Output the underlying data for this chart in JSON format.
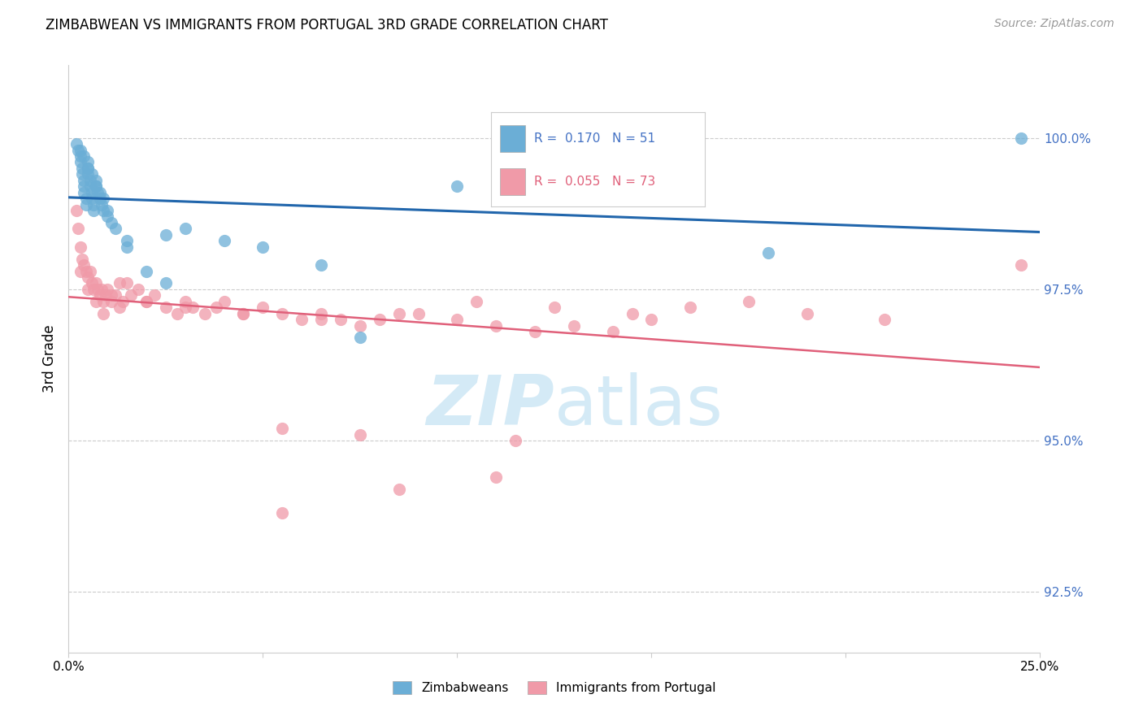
{
  "title": "ZIMBABWEAN VS IMMIGRANTS FROM PORTUGAL 3RD GRADE CORRELATION CHART",
  "source": "Source: ZipAtlas.com",
  "ylabel": "3rd Grade",
  "ytick_labels": [
    "92.5%",
    "95.0%",
    "97.5%",
    "100.0%"
  ],
  "ytick_values": [
    92.5,
    95.0,
    97.5,
    100.0
  ],
  "xlim": [
    0.0,
    25.0
  ],
  "ylim": [
    91.5,
    101.2
  ],
  "blue_color": "#6baed6",
  "pink_color": "#f09aa8",
  "blue_line_color": "#2166ac",
  "pink_line_color": "#e0607a",
  "blue_text_color": "#4472c4",
  "pink_text_color": "#e0607a",
  "watermark_color": "#d0e8f5",
  "background_color": "#ffffff",
  "grid_color": "#cccccc",
  "label_blue": "Zimbabweans",
  "label_pink": "Immigrants from Portugal",
  "legend_R1": "0.170",
  "legend_N1": "51",
  "legend_R2": "0.055",
  "legend_N2": "73",
  "zimbabwean_x": [
    0.2,
    0.25,
    0.3,
    0.3,
    0.35,
    0.35,
    0.4,
    0.4,
    0.4,
    0.45,
    0.45,
    0.5,
    0.5,
    0.5,
    0.55,
    0.55,
    0.6,
    0.6,
    0.65,
    0.65,
    0.7,
    0.7,
    0.75,
    0.8,
    0.85,
    0.9,
    1.0,
    1.1,
    1.2,
    1.5,
    2.0,
    2.5,
    3.0,
    4.0,
    5.0,
    6.5,
    7.5,
    10.0,
    12.0,
    18.0,
    24.5,
    0.3,
    0.4,
    0.5,
    0.6,
    0.7,
    0.8,
    0.9,
    1.0,
    1.5,
    2.5
  ],
  "zimbabwean_y": [
    99.9,
    99.8,
    99.7,
    99.6,
    99.5,
    99.4,
    99.3,
    99.2,
    99.1,
    99.0,
    98.9,
    99.6,
    99.5,
    99.4,
    99.3,
    99.2,
    99.1,
    99.0,
    98.9,
    98.8,
    99.3,
    99.2,
    99.1,
    99.0,
    98.9,
    98.8,
    98.7,
    98.6,
    98.5,
    98.3,
    97.8,
    98.4,
    98.5,
    98.3,
    98.2,
    97.9,
    96.7,
    99.2,
    99.1,
    98.1,
    100.0,
    99.8,
    99.7,
    99.5,
    99.4,
    99.2,
    99.1,
    99.0,
    98.8,
    98.2,
    97.6
  ],
  "portugal_x": [
    0.2,
    0.25,
    0.3,
    0.35,
    0.4,
    0.45,
    0.5,
    0.55,
    0.6,
    0.65,
    0.7,
    0.75,
    0.8,
    0.85,
    0.9,
    0.95,
    1.0,
    1.1,
    1.2,
    1.3,
    1.4,
    1.5,
    1.6,
    1.8,
    2.0,
    2.2,
    2.5,
    2.8,
    3.0,
    3.2,
    3.5,
    3.8,
    4.0,
    4.5,
    5.0,
    5.5,
    6.0,
    6.5,
    7.0,
    7.5,
    8.0,
    9.0,
    10.0,
    11.0,
    12.0,
    13.0,
    14.0,
    15.0,
    16.0,
    17.5,
    19.0,
    21.0,
    24.5,
    0.3,
    0.5,
    0.7,
    0.9,
    1.1,
    1.3,
    2.0,
    3.0,
    4.5,
    6.5,
    8.5,
    10.5,
    12.5,
    14.5,
    5.5,
    7.5,
    11.0,
    5.5,
    8.5,
    11.5
  ],
  "portugal_y": [
    98.8,
    98.5,
    98.2,
    98.0,
    97.9,
    97.8,
    97.7,
    97.8,
    97.6,
    97.5,
    97.6,
    97.5,
    97.4,
    97.5,
    97.3,
    97.4,
    97.5,
    97.3,
    97.4,
    97.2,
    97.3,
    97.6,
    97.4,
    97.5,
    97.3,
    97.4,
    97.2,
    97.1,
    97.3,
    97.2,
    97.1,
    97.2,
    97.3,
    97.1,
    97.2,
    97.1,
    97.0,
    97.1,
    97.0,
    96.9,
    97.0,
    97.1,
    97.0,
    96.9,
    96.8,
    96.9,
    96.8,
    97.0,
    97.2,
    97.3,
    97.1,
    97.0,
    97.9,
    97.8,
    97.5,
    97.3,
    97.1,
    97.4,
    97.6,
    97.3,
    97.2,
    97.1,
    97.0,
    97.1,
    97.3,
    97.2,
    97.1,
    95.2,
    95.1,
    94.4,
    93.8,
    94.2,
    95.0
  ]
}
